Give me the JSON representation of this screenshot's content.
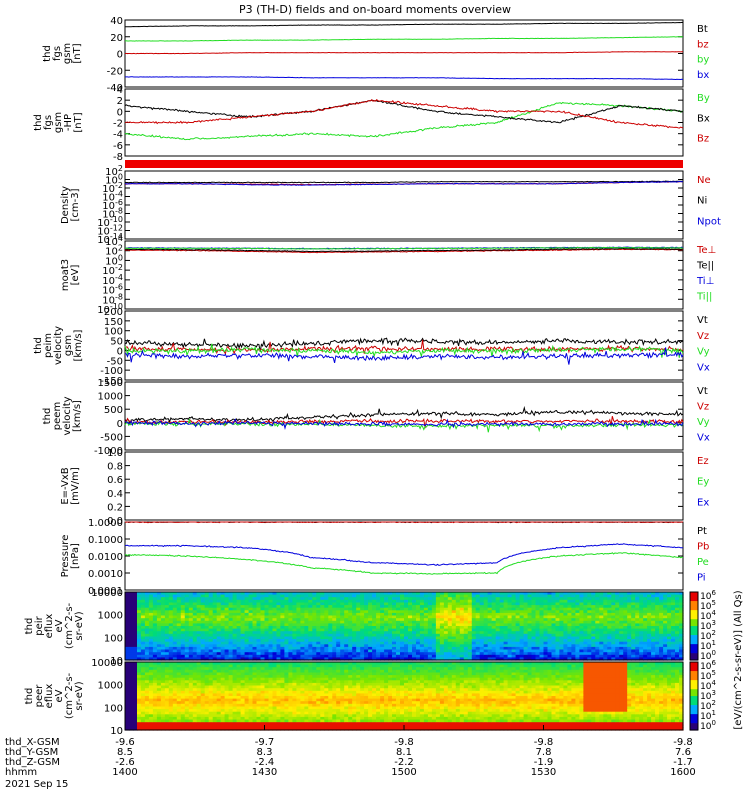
{
  "title": "P3 (TH-D) fields and on-board moments overview",
  "colors": {
    "black": "#000000",
    "red": "#cc0000",
    "green": "#22dd22",
    "blue": "#0000dd"
  },
  "chart_data": [
    {
      "type": "line",
      "id": "fgs",
      "ylabel": [
        "thd",
        "fgs",
        "gsm",
        "[nT]"
      ],
      "ylim": [
        -40,
        40
      ],
      "yticks": [
        40,
        20,
        0,
        -20,
        -40
      ],
      "series": [
        {
          "name": "Bt",
          "color": "#000000",
          "values": [
            32,
            33,
            33,
            34,
            34,
            35,
            35,
            36,
            36,
            37
          ]
        },
        {
          "name": "bz",
          "color": "#cc0000",
          "values": [
            0,
            0,
            1,
            1,
            1,
            1,
            1,
            1,
            2,
            2
          ]
        },
        {
          "name": "by",
          "color": "#22dd22",
          "values": [
            15,
            15,
            16,
            16,
            17,
            17,
            18,
            18,
            19,
            20
          ]
        },
        {
          "name": "bx",
          "color": "#0000dd",
          "values": [
            -28,
            -28,
            -28,
            -29,
            -29,
            -29,
            -30,
            -30,
            -30,
            -31
          ]
        }
      ]
    },
    {
      "type": "line",
      "id": "fgs_hp",
      "ylabel": [
        "thd",
        "fgs",
        "gsm",
        "-HP",
        "[nT]"
      ],
      "ylim": [
        -8,
        4
      ],
      "yticks": [
        4,
        2,
        0,
        -2,
        -4,
        -6,
        -8
      ],
      "series": [
        {
          "name": "By",
          "color": "#22dd22",
          "values": [
            -4,
            -5,
            -4.5,
            -4,
            -4.5,
            -3,
            -2,
            1.5,
            1,
            0
          ]
        },
        {
          "name": "Bx",
          "color": "#000000",
          "values": [
            1,
            0,
            -1,
            0,
            2,
            0,
            -1,
            -2,
            1,
            0
          ]
        },
        {
          "name": "Bz",
          "color": "#cc0000",
          "values": [
            -2,
            -2,
            -1,
            0,
            2,
            1,
            0,
            0,
            -2,
            -3
          ]
        }
      ]
    },
    {
      "type": "line",
      "id": "density",
      "scale": "log",
      "ylabel": [
        "Density",
        "[cm-3]"
      ],
      "ylim": [
        1e-14,
        100
      ],
      "yticks": [
        "10^2",
        "10^0",
        "10^-2",
        "10^-4",
        "10^-6",
        "10^-8",
        "10^-10",
        "10^-12",
        "10^-14"
      ],
      "series": [
        {
          "name": "Ne",
          "color": "#cc0000",
          "values": [
            0.1,
            0.1,
            0.08,
            0.06,
            0.08,
            0.1,
            0.1,
            0.1,
            0.2,
            0.3
          ]
        },
        {
          "name": "Ni",
          "color": "#000000",
          "values": [
            0.2,
            0.2,
            0.2,
            0.2,
            0.2,
            0.3,
            0.3,
            0.3,
            0.3,
            0.4
          ]
        },
        {
          "name": "Npot",
          "color": "#0000dd",
          "values": [
            0.1,
            0.1,
            0.06,
            0.05,
            0.07,
            0.1,
            0.1,
            0.1,
            0.2,
            0.3
          ]
        }
      ]
    },
    {
      "type": "line",
      "id": "temp",
      "scale": "log",
      "ylabel": [
        "moat3",
        "[eV]"
      ],
      "ylim": [
        1e-10,
        100000.0
      ],
      "yticks": [
        "10^4",
        "10^2",
        "10^0",
        "10^-2",
        "10^-4",
        "10^-6",
        "10^-8",
        "10^-10"
      ],
      "legend": [
        "Te⊥",
        "Te||",
        "Ti⊥",
        "Ti||"
      ],
      "series": [
        {
          "name": "Te⊥",
          "color": "#cc0000",
          "values": [
            1000,
            800,
            500,
            300,
            400,
            500,
            700,
            1000,
            1500,
            1200
          ]
        },
        {
          "name": "Te||",
          "color": "#000000",
          "values": [
            1500,
            1200,
            800,
            500,
            600,
            800,
            1000,
            1500,
            2000,
            1600
          ]
        },
        {
          "name": "Ti⊥",
          "color": "#0000dd",
          "values": [
            3000,
            2800,
            2500,
            2000,
            2200,
            2500,
            3000,
            3500,
            4000,
            3500
          ]
        },
        {
          "name": "Ti||",
          "color": "#22dd22",
          "values": [
            2500,
            2400,
            2200,
            1800,
            2000,
            2200,
            2600,
            3000,
            3500,
            3000
          ]
        }
      ]
    },
    {
      "type": "line",
      "id": "peim",
      "ylabel": [
        "thd",
        "peim",
        "velocity",
        "gsm",
        "[km/s]"
      ],
      "ylim": [
        -150,
        200
      ],
      "yticks": [
        200,
        150,
        100,
        50,
        0,
        -50,
        -100,
        -150
      ],
      "series": [
        {
          "name": "Vt",
          "color": "#000000",
          "values": [
            40,
            30,
            25,
            35,
            50,
            45,
            40,
            50,
            40,
            45
          ]
        },
        {
          "name": "Vz",
          "color": "#cc0000",
          "values": [
            10,
            5,
            0,
            10,
            10,
            5,
            10,
            5,
            10,
            5
          ]
        },
        {
          "name": "Vy",
          "color": "#22dd22",
          "values": [
            0,
            -5,
            5,
            0,
            -10,
            0,
            -5,
            0,
            5,
            0
          ]
        },
        {
          "name": "Vx",
          "color": "#0000dd",
          "values": [
            -20,
            -30,
            -25,
            -30,
            -40,
            -30,
            -35,
            -30,
            -25,
            -20
          ]
        }
      ]
    },
    {
      "type": "line",
      "id": "peem",
      "ylabel": [
        "thd",
        "peem",
        "velocity",
        "[km/s]"
      ],
      "ylim": [
        -1000,
        1500
      ],
      "yticks": [
        1500,
        1000,
        500,
        0,
        -500,
        -1000
      ],
      "series": [
        {
          "name": "Vt",
          "color": "#000000",
          "values": [
            100,
            150,
            100,
            200,
            300,
            350,
            300,
            400,
            350,
            300
          ]
        },
        {
          "name": "Vz",
          "color": "#cc0000",
          "values": [
            20,
            30,
            20,
            40,
            60,
            60,
            50,
            60,
            50,
            40
          ]
        },
        {
          "name": "Vy",
          "color": "#22dd22",
          "values": [
            -30,
            -50,
            -40,
            -60,
            -100,
            -120,
            -80,
            -100,
            -90,
            -70
          ]
        },
        {
          "name": "Vx",
          "color": "#0000dd",
          "values": [
            0,
            -20,
            -10,
            -30,
            -50,
            -60,
            -40,
            -50,
            -40,
            -30
          ]
        }
      ]
    },
    {
      "type": "line",
      "id": "exb",
      "ylabel": [
        "E=-VxB",
        "[mV/m]"
      ],
      "ylim": [
        0,
        1
      ],
      "yticks": [
        "1.0",
        "0.8",
        "0.6",
        "0.4",
        "0.2",
        "0.0"
      ],
      "legend": [
        "Ez",
        "Ey",
        "Ex"
      ],
      "series": []
    },
    {
      "type": "line",
      "id": "pressure",
      "scale": "log",
      "ylabel": [
        "Pressure",
        "[nPa]"
      ],
      "ylim": [
        0.0001,
        1
      ],
      "yticks": [
        "1.0000",
        "0.1000",
        "0.0100",
        "0.0010",
        "0.0001"
      ],
      "series": [
        {
          "name": "Pt",
          "color": "#000000",
          "values": [
            1,
            1,
            1,
            1,
            1,
            1,
            1,
            1,
            1,
            1
          ]
        },
        {
          "name": "Pb",
          "color": "#cc0000",
          "values": [
            1,
            1,
            1,
            1,
            1,
            1,
            1,
            1,
            1,
            1
          ]
        },
        {
          "name": "Pe",
          "color": "#22dd22",
          "values": [
            0.012,
            0.01,
            0.006,
            0.002,
            0.001,
            0.0009,
            0.001,
            0.01,
            0.015,
            0.008
          ]
        },
        {
          "name": "Pi",
          "color": "#0000dd",
          "values": [
            0.04,
            0.04,
            0.03,
            0.008,
            0.004,
            0.003,
            0.004,
            0.03,
            0.05,
            0.03
          ]
        }
      ]
    },
    {
      "type": "heatmap",
      "id": "peir",
      "ylabel": [
        "thd",
        "peir",
        "eflux",
        "eV",
        "(cm^2-s-",
        "sr-eV)"
      ],
      "yticks": [
        "10000",
        "1000",
        "100",
        "10"
      ]
    },
    {
      "type": "heatmap",
      "id": "peer",
      "ylabel": [
        "thd",
        "peer",
        "eflux",
        "eV",
        "(cm^2-s-",
        "sr-eV)"
      ],
      "yticks": [
        "10000",
        "1000",
        "100",
        "10"
      ]
    }
  ],
  "legends": [
    [
      "Bt",
      "bz",
      "by",
      "bx"
    ],
    [
      "By",
      "Bx",
      "Bz"
    ],
    [
      "Ne",
      "Ni",
      "Npot"
    ],
    [
      "Te⊥",
      "Te||",
      "Ti⊥",
      "Ti||"
    ],
    [
      "Vt",
      "Vz",
      "Vy",
      "Vx"
    ],
    [
      "Vt",
      "Vz",
      "Vy",
      "Vx"
    ],
    [
      "Ez",
      "Ey",
      "Ex"
    ],
    [
      "Pt",
      "Pb",
      "Pe",
      "Pi"
    ]
  ],
  "colorbar": {
    "ticks": [
      "10^6",
      "10^5",
      "10^4",
      "10^3",
      "10^2",
      "10^1",
      "10^0"
    ],
    "ticks2": [
      "10^6",
      "10^5",
      "10^4",
      "10^3",
      "10^2",
      "10^1",
      "10^0"
    ],
    "label": "[eV/(cm^2-s-sr-eV)] (All Qs)"
  },
  "xaxis": {
    "row_labels": [
      "thd_X-GSM",
      "thd_Y-GSM",
      "thd_Z-GSM",
      "hhmm",
      "2021 Sep 15"
    ],
    "columns": [
      [
        "-9.6",
        "8.5",
        "-2.6",
        "1400"
      ],
      [
        "-9.7",
        "8.3",
        "-2.4",
        "1430"
      ],
      [
        "-9.8",
        "8.1",
        "-2.2",
        "1500"
      ],
      [
        "-9.8",
        "7.8",
        "-1.9",
        "1530"
      ],
      [
        "-9.8",
        "7.6",
        "-1.7",
        "1600"
      ]
    ]
  }
}
